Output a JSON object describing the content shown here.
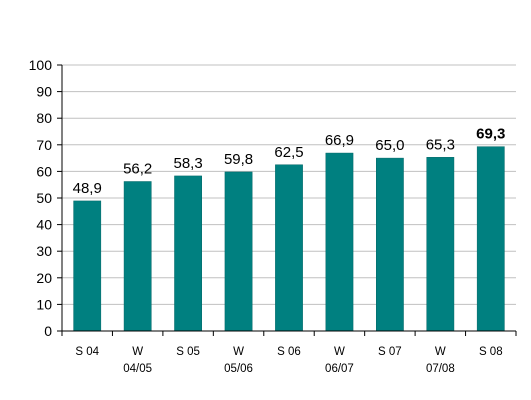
{
  "chart_data": {
    "type": "bar",
    "categories": [
      [
        "S 04"
      ],
      [
        "W",
        "04/05"
      ],
      [
        "S 05"
      ],
      [
        "W",
        "05/06"
      ],
      [
        "S 06"
      ],
      [
        "W",
        "06/07"
      ],
      [
        "S 07"
      ],
      [
        "W",
        "07/08"
      ],
      [
        "S 08"
      ]
    ],
    "values": [
      48.9,
      56.2,
      58.3,
      59.8,
      62.5,
      66.9,
      65.0,
      65.3,
      69.3
    ],
    "value_labels": [
      "48,9",
      "56,2",
      "58,3",
      "59,8",
      "62,5",
      "66,9",
      "65,0",
      "65,3",
      "69,3"
    ],
    "highlighted_index": 8,
    "ylim": [
      0,
      100
    ],
    "yticks": [
      0,
      10,
      20,
      30,
      40,
      50,
      60,
      70,
      80,
      90,
      100
    ],
    "grid": true,
    "legend": false,
    "title": "",
    "xlabel": "",
    "ylabel": "",
    "colors": {
      "bar": "#008080",
      "bar_edge": "#006666",
      "grid": "#c0c0c0",
      "axis": "#000000",
      "text": "#000000"
    }
  }
}
